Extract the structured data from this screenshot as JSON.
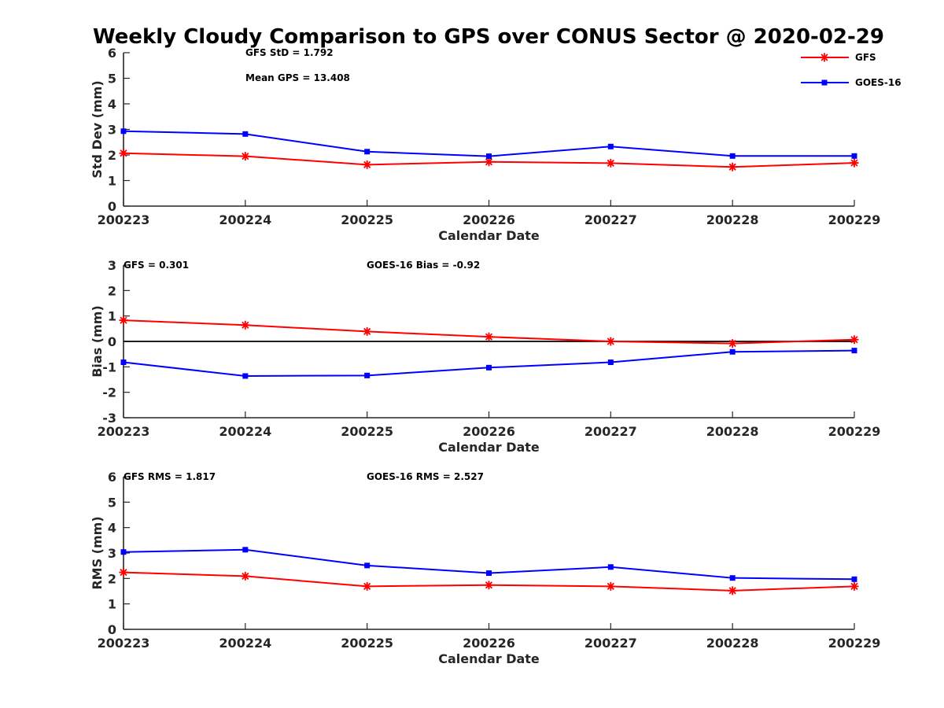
{
  "title": "Weekly Cloudy Comparison to GPS over CONUS Sector @ 2020-02-29",
  "chart_data": [
    {
      "type": "line",
      "categories": [
        "200223",
        "200224",
        "200225",
        "200226",
        "200227",
        "200228",
        "200229"
      ],
      "xlabel": "Calendar Date",
      "ylabel": "Std Dev (mm)",
      "ylim": [
        0,
        6
      ],
      "yticks": [
        "0",
        "1",
        "2",
        "3",
        "4",
        "5",
        "6"
      ],
      "zero_line": false,
      "series": [
        {
          "name": "GFS",
          "color": "#ff0000",
          "marker": "asterisk",
          "values": [
            2.07,
            1.95,
            1.62,
            1.73,
            1.68,
            1.53,
            1.69
          ]
        },
        {
          "name": "GOES-16",
          "color": "#0000ff",
          "marker": "square",
          "values": [
            2.93,
            2.82,
            2.13,
            1.95,
            2.33,
            1.96,
            1.96
          ]
        }
      ],
      "annotations": [
        {
          "id": "a1",
          "text": "GFS StD = 1.792"
        },
        {
          "id": "a2",
          "text": "Mean GPS = 13.408"
        }
      ],
      "legend": {
        "placement": "top-right",
        "entries": [
          "GFS",
          "GOES-16"
        ]
      }
    },
    {
      "type": "line",
      "categories": [
        "200223",
        "200224",
        "200225",
        "200226",
        "200227",
        "200228",
        "200229"
      ],
      "xlabel": "Calendar Date",
      "ylabel": "Bias (mm)",
      "ylim": [
        -3,
        3
      ],
      "yticks": [
        "-3",
        "-2",
        "-1",
        "0",
        "1",
        "2",
        "3"
      ],
      "zero_line": true,
      "series": [
        {
          "name": "GFS",
          "color": "#ff0000",
          "marker": "asterisk",
          "values": [
            0.83,
            0.64,
            0.39,
            0.18,
            0.0,
            -0.08,
            0.07
          ]
        },
        {
          "name": "GOES-16",
          "color": "#0000ff",
          "marker": "square",
          "values": [
            -0.82,
            -1.36,
            -1.34,
            -1.03,
            -0.82,
            -0.41,
            -0.36
          ]
        }
      ],
      "annotations": [
        {
          "id": "b1",
          "text": "GFS = 0.301"
        },
        {
          "id": "b2",
          "text": "GOES-16 Bias  = -0.92"
        }
      ]
    },
    {
      "type": "line",
      "categories": [
        "200223",
        "200224",
        "200225",
        "200226",
        "200227",
        "200228",
        "200229"
      ],
      "xlabel": "Calendar Date",
      "ylabel": "RMS (mm)",
      "ylim": [
        0,
        6
      ],
      "yticks": [
        "0",
        "1",
        "2",
        "3",
        "4",
        "5",
        "6"
      ],
      "zero_line": false,
      "series": [
        {
          "name": "GFS",
          "color": "#ff0000",
          "marker": "asterisk",
          "values": [
            2.24,
            2.09,
            1.69,
            1.74,
            1.69,
            1.52,
            1.69
          ]
        },
        {
          "name": "GOES-16",
          "color": "#0000ff",
          "marker": "square",
          "values": [
            3.04,
            3.13,
            2.51,
            2.21,
            2.45,
            2.02,
            1.97
          ]
        }
      ],
      "annotations": [
        {
          "id": "c1",
          "text": "GFS RMS = 1.817"
        },
        {
          "id": "c2",
          "text": "GOES-16 RMS = 2.527"
        }
      ]
    }
  ]
}
